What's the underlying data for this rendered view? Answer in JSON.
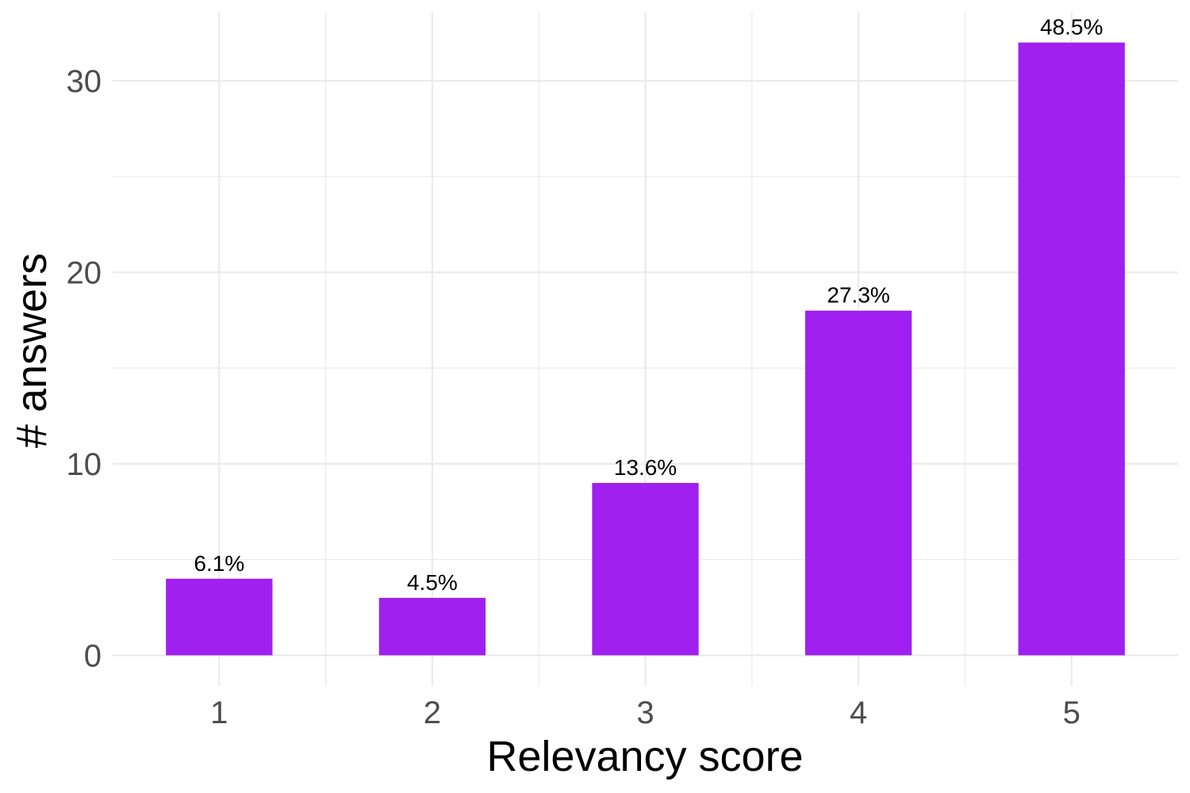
{
  "chart_data": {
    "type": "bar",
    "categories": [
      "1",
      "2",
      "3",
      "4",
      "5"
    ],
    "values": [
      4,
      3,
      9,
      18,
      32
    ],
    "labels": [
      "6.1%",
      "4.5%",
      "13.6%",
      "27.3%",
      "48.5%"
    ],
    "xlabel": "Relevancy score",
    "ylabel": "# answers",
    "yticks": [
      0,
      10,
      20,
      30
    ],
    "ylim": [
      -1.6,
      33.6
    ],
    "grid": true,
    "bar_color": "#a020f0",
    "grid_color": "#ebebeb"
  }
}
